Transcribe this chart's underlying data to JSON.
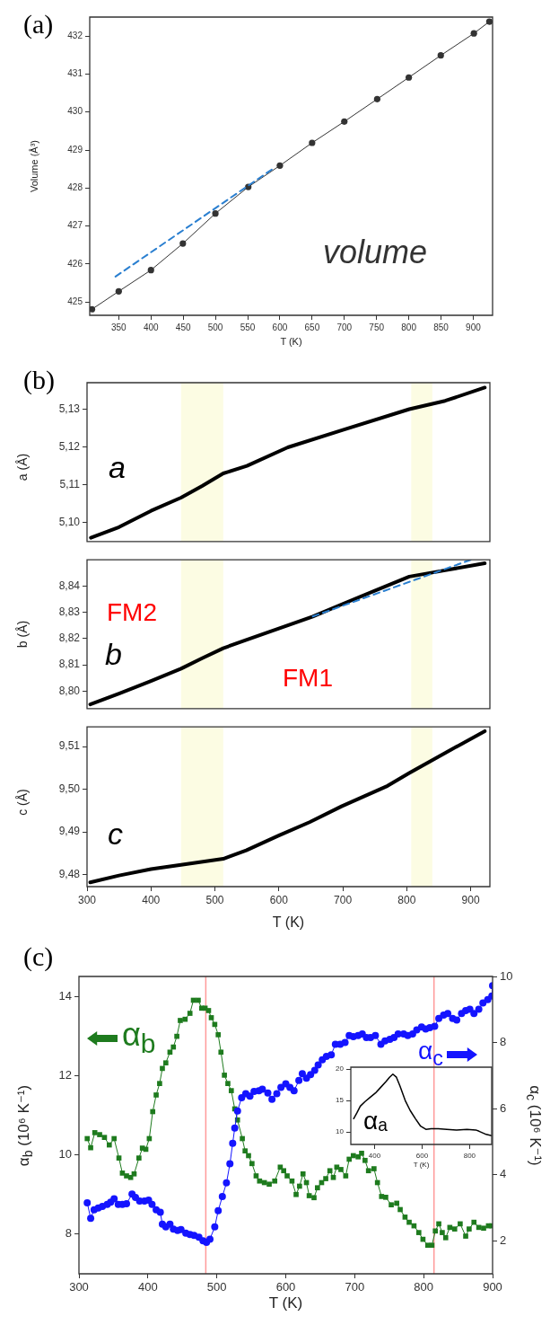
{
  "chart_data": [
    {
      "type": "line",
      "title": "(a)",
      "xlabel": "T (K)",
      "ylabel": "Volume (Å³)",
      "xlim": [
        305,
        930
      ],
      "xticks": [
        350,
        400,
        450,
        500,
        550,
        600,
        650,
        700,
        750,
        800,
        850,
        900
      ],
      "ylim": [
        424.65,
        432.5
      ],
      "yticks": [
        425,
        426,
        427,
        428,
        429,
        430,
        431,
        432
      ],
      "marker": "circle",
      "series": [
        {
          "name": "volume",
          "color": "#333333",
          "x": [
            308.5,
            350,
            400,
            449.5,
            500,
            551,
            600,
            650,
            700,
            751,
            800,
            849.6,
            901,
            925
          ],
          "values": [
            424.81,
            425.28,
            425.84,
            426.54,
            427.33,
            428.03,
            428.59,
            429.19,
            429.75,
            430.34,
            430.91,
            431.49,
            432.07,
            432.38
          ]
        },
        {
          "color": "#2a7fd0",
          "marker": "none",
          "line_style": "dashed",
          "x": [
            345,
            592
          ],
          "values": [
            425.67,
            428.54
          ]
        }
      ]
    },
    {
      "type": "line",
      "title": "(b)",
      "ylabel": "a (Å)",
      "xlim": [
        300,
        930
      ],
      "xticks": [
        300,
        400,
        500,
        600,
        700,
        800,
        900
      ],
      "ylim": [
        5.095,
        5.137
      ],
      "yticks": [
        {
          "value": 5.1,
          "label": "5,10"
        },
        {
          "value": 5.11,
          "label": "5,11"
        },
        {
          "value": 5.12,
          "label": "5,12"
        },
        {
          "value": 5.13,
          "label": "5,13"
        }
      ],
      "tick_labels": "y",
      "marker": "none",
      "bands": [
        {
          "axis": "x",
          "from": 447,
          "to": 513,
          "color": "#fcfce3"
        },
        {
          "axis": "x",
          "from": 807,
          "to": 840,
          "color": "#fcfce3"
        }
      ],
      "series": [
        {
          "name": "a",
          "color": "#000000",
          "x": [
            306,
            350,
            400,
            447,
            480,
            513,
            550,
            614,
            700,
            804,
            860,
            922
          ],
          "values": [
            5.096,
            5.0988,
            5.1031,
            5.1066,
            5.1097,
            5.113,
            5.115,
            5.1199,
            5.1245,
            5.13,
            5.1322,
            5.1357
          ]
        }
      ]
    },
    {
      "type": "line",
      "ylabel": "b (Å)",
      "xlim": [
        300,
        930
      ],
      "xticks": [
        300,
        400,
        500,
        600,
        700,
        800,
        900
      ],
      "ylim": [
        8.7933,
        8.85
      ],
      "yticks": [
        {
          "value": 8.8,
          "label": "8,80"
        },
        {
          "value": 8.81,
          "label": "8,81"
        },
        {
          "value": 8.82,
          "label": "8,82"
        },
        {
          "value": 8.83,
          "label": "8,83"
        },
        {
          "value": 8.84,
          "label": "8,84"
        }
      ],
      "tick_labels": "y",
      "marker": "none",
      "annotations": [
        "FM2",
        "FM1"
      ],
      "bands": [
        {
          "axis": "x",
          "from": 447,
          "to": 513,
          "color": "#fcfce3"
        },
        {
          "axis": "x",
          "from": 807,
          "to": 840,
          "color": "#fcfce3"
        }
      ],
      "series": [
        {
          "name": "b",
          "color": "#000000",
          "x": [
            305,
            350,
            400,
            447,
            480,
            513,
            548,
            600,
            653,
            700,
            750,
            804,
            860,
            922
          ],
          "values": [
            8.7949,
            8.799,
            8.8038,
            8.8085,
            8.8125,
            8.8163,
            8.8194,
            8.8238,
            8.8284,
            8.8332,
            8.8382,
            8.8436,
            8.846,
            8.8487
          ]
        },
        {
          "color": "#2a7fd0",
          "line_style": "dashed",
          "x": [
            653,
            900
          ],
          "values": [
            8.8284,
            8.85
          ]
        }
      ]
    },
    {
      "type": "line",
      "xlabel": "T (K)",
      "ylabel": "c (Å)",
      "xlim": [
        300,
        930
      ],
      "xticks": [
        300,
        400,
        500,
        600,
        700,
        800,
        900
      ],
      "ylim": [
        9.4772,
        9.5146
      ],
      "yticks": [
        {
          "value": 9.48,
          "label": "9,48"
        },
        {
          "value": 9.49,
          "label": "9,49"
        },
        {
          "value": 9.5,
          "label": "9,50"
        },
        {
          "value": 9.51,
          "label": "9,51"
        }
      ],
      "marker": "none",
      "bands": [
        {
          "axis": "x",
          "from": 447,
          "to": 513,
          "color": "#fcfce3"
        },
        {
          "axis": "x",
          "from": 807,
          "to": 840,
          "color": "#fcfce3"
        }
      ],
      "series": [
        {
          "name": "c",
          "color": "#000000",
          "x": [
            305,
            350,
            400,
            447,
            513,
            549,
            599,
            648,
            698,
            770,
            804,
            860,
            922
          ],
          "values": [
            9.4782,
            9.4798,
            9.4813,
            9.4823,
            9.4837,
            9.4857,
            9.4891,
            9.4923,
            9.496,
            9.5008,
            9.5038,
            9.5085,
            9.5136
          ]
        }
      ]
    },
    {
      "type": "line",
      "title": "(c)",
      "xlabel": "T  (K)",
      "ylabel": "α$_{b}$  (10⁶ K⁻¹)",
      "y2label": "α$_{c}$  (10⁶ K⁻¹)",
      "xlim": [
        300,
        900
      ],
      "xticks": [
        300,
        400,
        500,
        600,
        700,
        800,
        900
      ],
      "ylim": [
        7,
        14.5
      ],
      "yticks": [
        8,
        10,
        12,
        14
      ],
      "y2lim": [
        1,
        10
      ],
      "y2ticks": [
        2,
        4,
        6,
        8,
        10
      ],
      "ref_lines": [
        {
          "axis": "x",
          "value": 484,
          "color": "#ff9a9a"
        },
        {
          "axis": "x",
          "value": 815,
          "color": "#ff9a9a"
        }
      ],
      "series": [
        {
          "name": "α$_{b}$",
          "color": "#1e7b1e",
          "marker": "square",
          "x": [
            312,
            317,
            323,
            330,
            337,
            344,
            351,
            358,
            363,
            369,
            375,
            380,
            387,
            392,
            397,
            402,
            407,
            412,
            417,
            421,
            426,
            432,
            437,
            442,
            447,
            454,
            461,
            466,
            473,
            478,
            483,
            488,
            492,
            497,
            502,
            506,
            511,
            516,
            521,
            526,
            530,
            537,
            541,
            546,
            551,
            557,
            562,
            569,
            576,
            584,
            592,
            597,
            602,
            609,
            615,
            620,
            625,
            630,
            634,
            641,
            646,
            652,
            658,
            664,
            669,
            674,
            680,
            687,
            692,
            698,
            705,
            710,
            715,
            720,
            728,
            733,
            739,
            745,
            753,
            761,
            766,
            773,
            779,
            786,
            793,
            799,
            806,
            812,
            817,
            822,
            827,
            832,
            838,
            845,
            853,
            861,
            866,
            873,
            880,
            887,
            894,
            899
          ],
          "values": [
            10.41,
            10.18,
            10.56,
            10.51,
            10.44,
            10.25,
            10.41,
            9.92,
            9.54,
            9.47,
            9.43,
            9.52,
            9.92,
            10.17,
            10.14,
            10.41,
            11.09,
            11.51,
            11.8,
            12.18,
            12.32,
            12.59,
            12.72,
            12.99,
            13.39,
            13.42,
            13.57,
            13.9,
            13.9,
            13.7,
            13.7,
            13.64,
            13.46,
            13.29,
            13.03,
            12.59,
            12.01,
            11.8,
            11.62,
            11.16,
            10.88,
            10.41,
            10.1,
            9.98,
            9.78,
            9.47,
            9.34,
            9.3,
            9.26,
            9.34,
            9.69,
            9.6,
            9.47,
            9.34,
            9.0,
            9.21,
            9.52,
            9.3,
            8.97,
            8.92,
            9.17,
            9.3,
            9.4,
            9.6,
            9.43,
            9.69,
            9.63,
            9.47,
            9.89,
            9.98,
            9.95,
            10.04,
            9.86,
            9.6,
            9.65,
            9.3,
            8.95,
            8.93,
            8.74,
            8.78,
            8.62,
            8.43,
            8.3,
            8.21,
            8.04,
            7.87,
            7.72,
            7.72,
            8.08,
            8.26,
            8.04,
            7.91,
            8.17,
            8.13,
            8.26,
            7.95,
            8.13,
            8.3,
            8.17,
            8.15,
            8.21,
            8.21
          ]
        },
        {
          "name": "α$_{c}$",
          "color": "#1414ff",
          "marker": "circle",
          "axis": "y2",
          "x": [
            312,
            317,
            322,
            328,
            334,
            341,
            346,
            351,
            357,
            363,
            369,
            377,
            382,
            388,
            395,
            401,
            406,
            412,
            418,
            421,
            426,
            432,
            437,
            443,
            448,
            455,
            461,
            467,
            474,
            480,
            485,
            490,
            497,
            502,
            508,
            514,
            519,
            523,
            526,
            530,
            536,
            542,
            548,
            554,
            561,
            566,
            574,
            580,
            587,
            593,
            600,
            606,
            612,
            619,
            624,
            630,
            636,
            642,
            647,
            653,
            659,
            666,
            672,
            679,
            686,
            692,
            698,
            705,
            711,
            717,
            723,
            730,
            738,
            744,
            751,
            757,
            763,
            771,
            777,
            784,
            790,
            797,
            803,
            809,
            816,
            822,
            829,
            835,
            842,
            848,
            855,
            861,
            867,
            873,
            880,
            886,
            893,
            899,
            900
          ],
          "values": [
            3.15,
            2.68,
            2.94,
            2.99,
            3.04,
            3.1,
            3.17,
            3.27,
            3.1,
            3.1,
            3.12,
            3.41,
            3.31,
            3.2,
            3.2,
            3.23,
            3.1,
            2.94,
            2.86,
            2.5,
            2.42,
            2.5,
            2.35,
            2.31,
            2.34,
            2.23,
            2.19,
            2.16,
            2.11,
            2.0,
            1.95,
            2.05,
            2.42,
            2.91,
            3.34,
            3.75,
            4.33,
            4.95,
            5.41,
            5.93,
            6.33,
            6.45,
            6.38,
            6.52,
            6.54,
            6.59,
            6.47,
            6.28,
            6.45,
            6.64,
            6.75,
            6.64,
            6.54,
            6.85,
            7.06,
            6.92,
            7.03,
            7.16,
            7.32,
            7.48,
            7.58,
            7.63,
            7.95,
            7.95,
            8.0,
            8.21,
            8.18,
            8.21,
            8.26,
            8.15,
            8.15,
            8.21,
            7.95,
            8.05,
            8.1,
            8.15,
            8.26,
            8.26,
            8.21,
            8.26,
            8.38,
            8.47,
            8.41,
            8.45,
            8.49,
            8.73,
            8.83,
            8.88,
            8.73,
            8.68,
            8.88,
            8.97,
            9.01,
            8.88,
            9.01,
            9.2,
            9.3,
            9.41,
            9.72
          ]
        }
      ]
    },
    {
      "type": "line",
      "xlabel": "T (K)",
      "xlim": [
        300,
        893
      ],
      "xticks": [
        400,
        600,
        800
      ],
      "ylim": [
        8,
        20.3
      ],
      "yticks": [
        10,
        15,
        20
      ],
      "marker": "none",
      "series": [
        {
          "name": "αₐ",
          "color": "#000000",
          "x": [
            312,
            325,
            340,
            359,
            381,
            404,
            426,
            448,
            463,
            477,
            492,
            507,
            529,
            550,
            572,
            594,
            616,
            638,
            668,
            704,
            745,
            789,
            826,
            840,
            870,
            893
          ],
          "values": [
            12.1,
            13.0,
            14.1,
            14.8,
            15.5,
            16.2,
            17.1,
            18.0,
            18.7,
            19.2,
            18.7,
            17.3,
            15.0,
            13.4,
            12.1,
            10.9,
            10.4,
            10.5,
            10.5,
            10.4,
            10.3,
            10.4,
            10.3,
            10.1,
            9.6,
            9.4
          ]
        }
      ]
    }
  ]
}
